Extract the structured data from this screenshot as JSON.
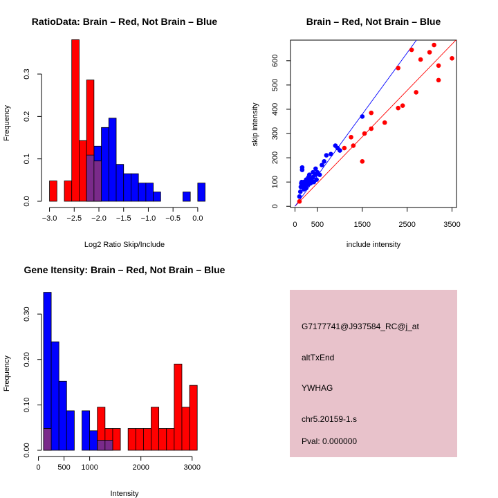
{
  "colors": {
    "red": "#ff0000",
    "blue": "#0000ff",
    "purple": "#7a2a8a",
    "panel": "#e8c2cb",
    "pval": "#8b0000"
  },
  "chart_data": [
    {
      "type": "bar",
      "subtype": "overlaid-histogram",
      "title": "RatioData: Brain – Red, Not Brain – Blue",
      "xlabel": "Log2 Ratio Skip/Include",
      "ylabel": "Frequency",
      "xlim": [
        -3.05,
        0.15
      ],
      "ylim": [
        0,
        0.38
      ],
      "xticks": [
        -3.0,
        -2.5,
        -2.0,
        -1.5,
        -1.0,
        -0.5,
        0.0
      ],
      "xtick_labels": [
        "−3.0",
        "−2.5",
        "−2.0",
        "−1.5",
        "−1.0",
        "−0.5",
        "0.0"
      ],
      "yticks": [
        0.0,
        0.1,
        0.2,
        0.3
      ],
      "ytick_labels": [
        "0.0",
        "0.1",
        "0.2",
        "0.3"
      ],
      "series": [
        {
          "name": "Brain",
          "color": "red",
          "bins": [
            [
              -3.0,
              -2.85,
              0.048
            ],
            [
              -2.7,
              -2.55,
              0.048
            ],
            [
              -2.55,
              -2.4,
              0.381
            ],
            [
              -2.4,
              -2.25,
              0.143
            ],
            [
              -2.25,
              -2.1,
              0.286
            ],
            [
              -2.1,
              -1.95,
              0.095
            ]
          ]
        },
        {
          "name": "Not Brain",
          "color": "blue",
          "bins": [
            [
              -2.25,
              -2.1,
              0.109
            ],
            [
              -2.1,
              -1.95,
              0.13
            ],
            [
              -1.95,
              -1.8,
              0.174
            ],
            [
              -1.8,
              -1.65,
              0.196
            ],
            [
              -1.65,
              -1.5,
              0.087
            ],
            [
              -1.5,
              -1.35,
              0.065
            ],
            [
              -1.35,
              -1.2,
              0.065
            ],
            [
              -1.2,
              -1.05,
              0.043
            ],
            [
              -1.05,
              -0.9,
              0.043
            ],
            [
              -0.9,
              -0.75,
              0.022
            ],
            [
              -0.3,
              -0.15,
              0.022
            ],
            [
              0.0,
              0.15,
              0.043
            ]
          ]
        }
      ]
    },
    {
      "type": "scatter",
      "title": "Brain – Red, Not Brain – Blue",
      "xlabel": "include intensity",
      "ylabel": "skip intensity",
      "xlim": [
        -100,
        3600
      ],
      "ylim": [
        -5,
        685
      ],
      "xticks": [
        0,
        500,
        1500,
        2500,
        3500
      ],
      "yticks": [
        0,
        100,
        200,
        300,
        400,
        500,
        600
      ],
      "lines": [
        {
          "name": "Brain fit",
          "color": "red",
          "slope": 0.191,
          "intercept": 0
        },
        {
          "name": "Not Brain fit",
          "color": "blue",
          "slope": 0.253,
          "intercept": 0
        }
      ],
      "series": [
        {
          "name": "Brain",
          "color": "red",
          "points": [
            [
              100,
              20
            ],
            [
              1100,
              240
            ],
            [
              1300,
              250
            ],
            [
              1250,
              285
            ],
            [
              1500,
              185
            ],
            [
              1550,
              300
            ],
            [
              1700,
              320
            ],
            [
              1700,
              385
            ],
            [
              2000,
              345
            ],
            [
              2300,
              405
            ],
            [
              2400,
              415
            ],
            [
              2300,
              570
            ],
            [
              2600,
              645
            ],
            [
              2700,
              470
            ],
            [
              2800,
              605
            ],
            [
              3000,
              635
            ],
            [
              3100,
              665
            ],
            [
              3200,
              580
            ],
            [
              3200,
              520
            ],
            [
              3500,
              610
            ]
          ]
        },
        {
          "name": "Not Brain",
          "color": "blue",
          "points": [
            [
              100,
              40
            ],
            [
              120,
              60
            ],
            [
              130,
              80
            ],
            [
              140,
              95
            ],
            [
              150,
              100
            ],
            [
              160,
              150
            ],
            [
              160,
              160
            ],
            [
              180,
              90
            ],
            [
              200,
              70
            ],
            [
              200,
              100
            ],
            [
              220,
              80
            ],
            [
              230,
              95
            ],
            [
              250,
              110
            ],
            [
              250,
              75
            ],
            [
              270,
              100
            ],
            [
              300,
              90
            ],
            [
              300,
              120
            ],
            [
              320,
              130
            ],
            [
              340,
              110
            ],
            [
              350,
              95
            ],
            [
              380,
              105
            ],
            [
              400,
              140
            ],
            [
              400,
              120
            ],
            [
              420,
              100
            ],
            [
              450,
              130
            ],
            [
              460,
              155
            ],
            [
              480,
              110
            ],
            [
              500,
              140
            ],
            [
              550,
              130
            ],
            [
              600,
              170
            ],
            [
              650,
              185
            ],
            [
              700,
              210
            ],
            [
              800,
              215
            ],
            [
              900,
              250
            ],
            [
              950,
              240
            ],
            [
              1000,
              230
            ],
            [
              1500,
              370
            ]
          ]
        }
      ]
    },
    {
      "type": "bar",
      "subtype": "overlaid-histogram",
      "title": "Gene Itensity: Brain – Red, Not Brain – Blue",
      "xlabel": "Intensity",
      "ylabel": "Frequency",
      "xlim": [
        60,
        3300
      ],
      "ylim": [
        0,
        0.355
      ],
      "xticks": [
        0,
        500,
        1000,
        2000,
        3000
      ],
      "yticks": [
        0.0,
        0.1,
        0.2,
        0.3
      ],
      "ytick_labels": [
        "0.00",
        "0.10",
        "0.20",
        "0.30"
      ],
      "series": [
        {
          "name": "Not Brain",
          "color": "blue",
          "bins": [
            [
              100,
              250,
              0.348
            ],
            [
              250,
              400,
              0.239
            ],
            [
              400,
              550,
              0.152
            ],
            [
              550,
              700,
              0.087
            ],
            [
              850,
              1000,
              0.087
            ],
            [
              1000,
              1150,
              0.043
            ],
            [
              1150,
              1300,
              0.022
            ],
            [
              1300,
              1450,
              0.022
            ]
          ]
        },
        {
          "name": "Brain",
          "color": "red",
          "bins": [
            [
              100,
              250,
              0.048
            ],
            [
              1150,
              1300,
              0.095
            ],
            [
              1300,
              1450,
              0.048
            ],
            [
              1450,
              1600,
              0.048
            ],
            [
              1750,
              1900,
              0.048
            ],
            [
              1900,
              2050,
              0.048
            ],
            [
              2050,
              2200,
              0.048
            ],
            [
              2200,
              2350,
              0.095
            ],
            [
              2350,
              2500,
              0.048
            ],
            [
              2500,
              2650,
              0.048
            ],
            [
              2650,
              2800,
              0.19
            ],
            [
              2800,
              2950,
              0.095
            ],
            [
              2950,
              3100,
              0.143
            ]
          ]
        }
      ]
    }
  ],
  "info_panel": {
    "probe_id": "G7177741@J937584_RC@j_at",
    "event_type": "altTxEnd",
    "gene": "YWHAG",
    "location": "chr5.20159-1.s",
    "pval": "Pval: 0.000000"
  }
}
